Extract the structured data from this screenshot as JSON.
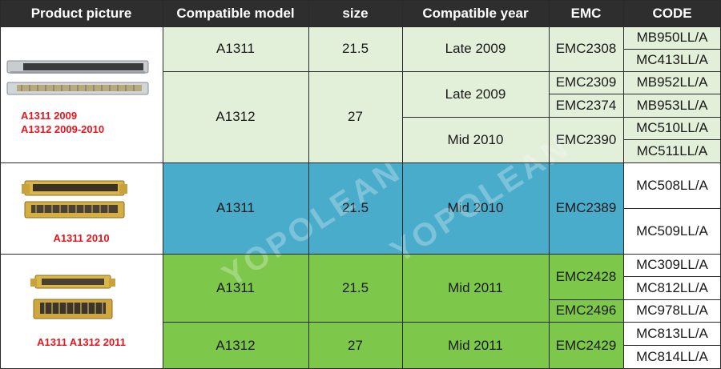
{
  "headers": {
    "product_picture": "Product picture",
    "compatible_model": "Compatible model",
    "size": "size",
    "compatible_year": "Compatible year",
    "emc": "EMC",
    "code": "CODE"
  },
  "groups": [
    {
      "caption_lines": [
        "A1311 2009",
        "A1312 2009-2010"
      ],
      "rows": [
        {
          "model": "A1311",
          "size": "21.5",
          "year": "Late 2009",
          "emc": "EMC2308",
          "codes": [
            "MB950LL/A",
            "MC413LL/A"
          ]
        },
        {
          "model": "A1312",
          "size": "27",
          "year": "Late 2009",
          "emc_list": [
            "EMC2309",
            "EMC2374"
          ],
          "codes": [
            "MB952LL/A",
            "MB953LL/A"
          ]
        },
        {
          "model": "A1312",
          "size": "27",
          "year": "Mid 2010",
          "emc": "EMC2390",
          "codes": [
            "MC510LL/A",
            "MC511LL/A"
          ]
        }
      ]
    },
    {
      "caption_lines": [
        "A1311 2010"
      ],
      "rows": [
        {
          "model": "A1311",
          "size": "21.5",
          "year": "Mid 2010",
          "emc": "EMC2389",
          "codes": [
            "MC508LL/A",
            "MC509LL/A"
          ]
        }
      ]
    },
    {
      "caption_lines": [
        "A1311 A1312 2011"
      ],
      "rows": [
        {
          "model": "A1311",
          "size": "21.5",
          "year": "Mid 2011",
          "emc_list": [
            "EMC2428",
            "EMC2496"
          ],
          "codes": [
            "MC309LL/A",
            "MC812LL/A",
            "MC978LL/A"
          ]
        },
        {
          "model": "A1312",
          "size": "27",
          "year": "Mid 2011",
          "emc": "EMC2429",
          "codes": [
            "MC813LL/A",
            "MC814LL/A"
          ]
        }
      ]
    }
  ],
  "watermark": "YOPOLEAN",
  "colors": {
    "header_bg": "#2e2e2e",
    "light_green": "#e2efd9",
    "blue": "#4aaccb",
    "green": "#7dc84a",
    "caption_red": "#e8161c"
  },
  "icons": {
    "group1": "lvds-connector-silver-icon",
    "group2": "lvds-connector-gold-icon",
    "group3": "lvds-connector-gold-small-icon"
  }
}
